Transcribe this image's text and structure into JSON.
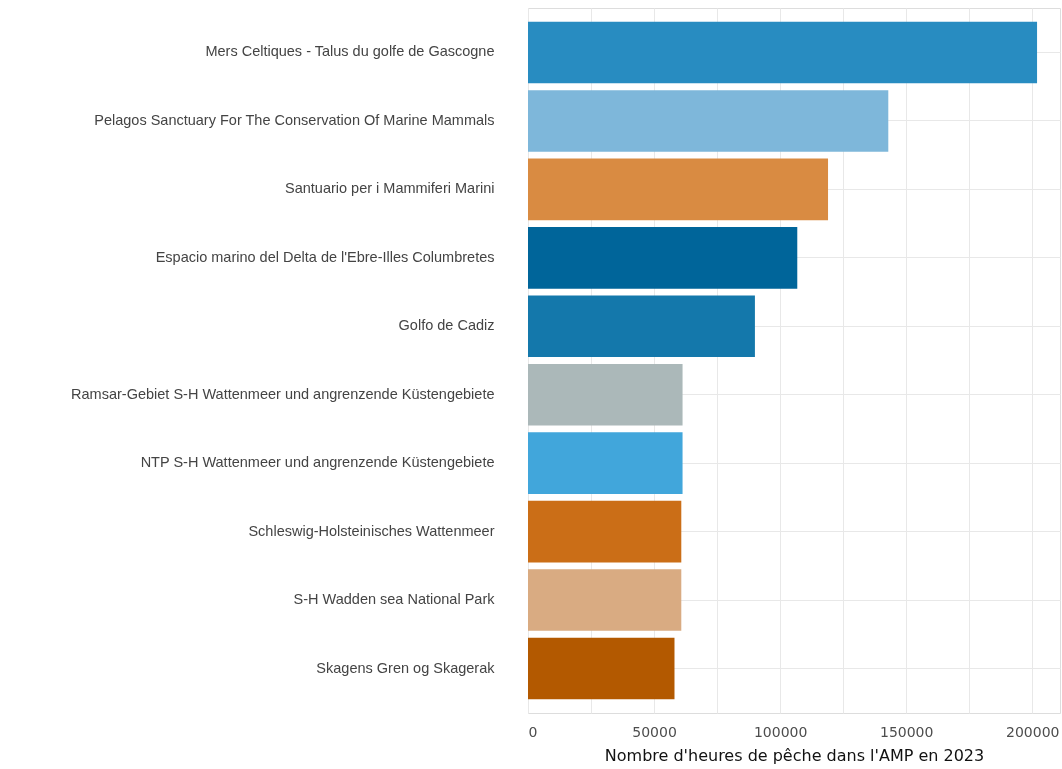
{
  "chart_data": {
    "type": "bar",
    "orientation": "horizontal",
    "xlabel": "Nombre d'heures de pêche dans l'AMP en 2023",
    "categories": [
      "Mers Celtiques - Talus du golfe de Gascogne",
      "Pelagos Sanctuary For The Conservation Of Marine Mammals",
      "Santuario per i Mammiferi Marini",
      "Espacio marino del Delta de l'Ebre-Illes Columbretes",
      "Golfo de Cadiz",
      "Ramsar-Gebiet S-H Wattenmeer und angrenzende Küstengebiete",
      "NTP S-H Wattenmeer und angrenzende Küstengebiete",
      "Schleswig-Holsteinisches Wattenmeer",
      "S-H Wadden sea National Park",
      "Skagens Gren og Skagerak"
    ],
    "values": [
      201900,
      142900,
      119000,
      106800,
      90000,
      61300,
      61300,
      60800,
      60800,
      58100
    ],
    "colors": [
      "#288cc1",
      "#7eb7da",
      "#d98b42",
      "#00659a",
      "#1478ab",
      "#abb8b9",
      "#41a6db",
      "#cb6e17",
      "#d9ab82",
      "#b35900"
    ],
    "xlim": [
      0,
      211000
    ],
    "xticks": [
      0,
      {
        "value": 25000,
        "label": null
      },
      50000,
      {
        "value": 75000,
        "label": null
      },
      100000,
      {
        "value": 125000,
        "label": null
      },
      150000,
      {
        "value": 175000,
        "label": null
      },
      200000
    ],
    "grid": true
  }
}
